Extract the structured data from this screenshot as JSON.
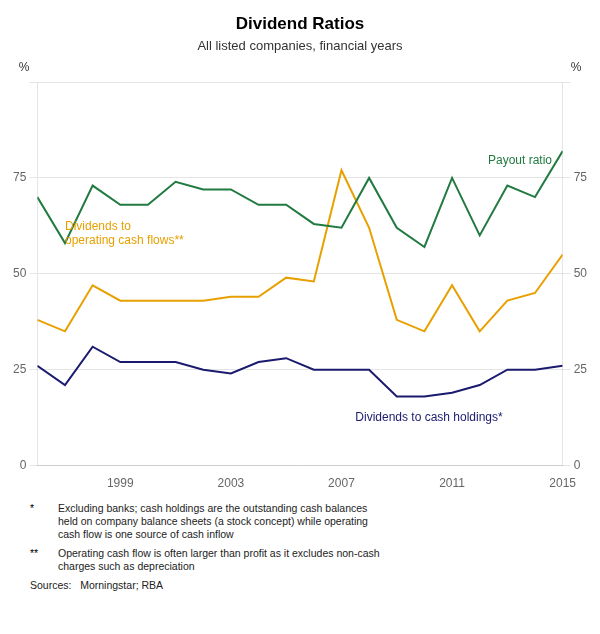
{
  "chart_data": {
    "type": "line",
    "title": "Dividend Ratios",
    "subtitle": "All listed companies, financial years",
    "y_label": "%",
    "y2_label": "%",
    "x": [
      1996,
      1997,
      1998,
      1999,
      2000,
      2001,
      2002,
      2003,
      2004,
      2005,
      2006,
      2007,
      2008,
      2009,
      2010,
      2011,
      2012,
      2013,
      2014,
      2015
    ],
    "series": [
      {
        "name": "Payout ratio",
        "color": "#217a40",
        "values": [
          70,
          58,
          73,
          68,
          68,
          74,
          72,
          72,
          68,
          68,
          63,
          62,
          75,
          62,
          57,
          75,
          60,
          73,
          70,
          82
        ],
        "label_at": [
          2012.3,
          78
        ]
      },
      {
        "name": "Dividends to\noperating cash flows**",
        "color": "#e8a000",
        "values": [
          38,
          35,
          47,
          43,
          43,
          43,
          43,
          44,
          44,
          49,
          48,
          77,
          62,
          38,
          35,
          47,
          35,
          43,
          45,
          55
        ],
        "label_at": [
          1997.0,
          57
        ]
      },
      {
        "name": "Dividends to cash holdings*",
        "color": "#1a1a6e",
        "values": [
          26,
          21,
          31,
          27,
          27,
          27,
          25,
          24,
          27,
          28,
          25,
          25,
          25,
          18,
          18,
          19,
          21,
          25,
          25,
          26
        ],
        "label_at": [
          2007.5,
          11
        ]
      }
    ],
    "xlim": [
      1996,
      2015
    ],
    "xticks": [
      1999,
      2003,
      2007,
      2011,
      2015
    ],
    "ylim": [
      0,
      100
    ],
    "yticks": [
      0,
      25,
      50,
      75,
      {
        "value": 100,
        "label": null
      }
    ],
    "y2lim": [
      0,
      100
    ],
    "y2ticks": [
      0,
      25,
      50,
      75,
      {
        "value": 100,
        "label": null
      }
    ],
    "grid": true,
    "footnotes": [
      {
        "marker": "*",
        "text": "Excluding banks; cash holdings are the outstanding cash balances\nheld on company balance sheets (a stock concept) while operating\ncash flow is one source of cash inflow"
      },
      {
        "marker": "**",
        "text": "Operating cash flow is often larger than profit as it excludes non-cash\ncharges such as depreciation"
      }
    ],
    "sources": "Sources:   Morningstar; RBA"
  }
}
